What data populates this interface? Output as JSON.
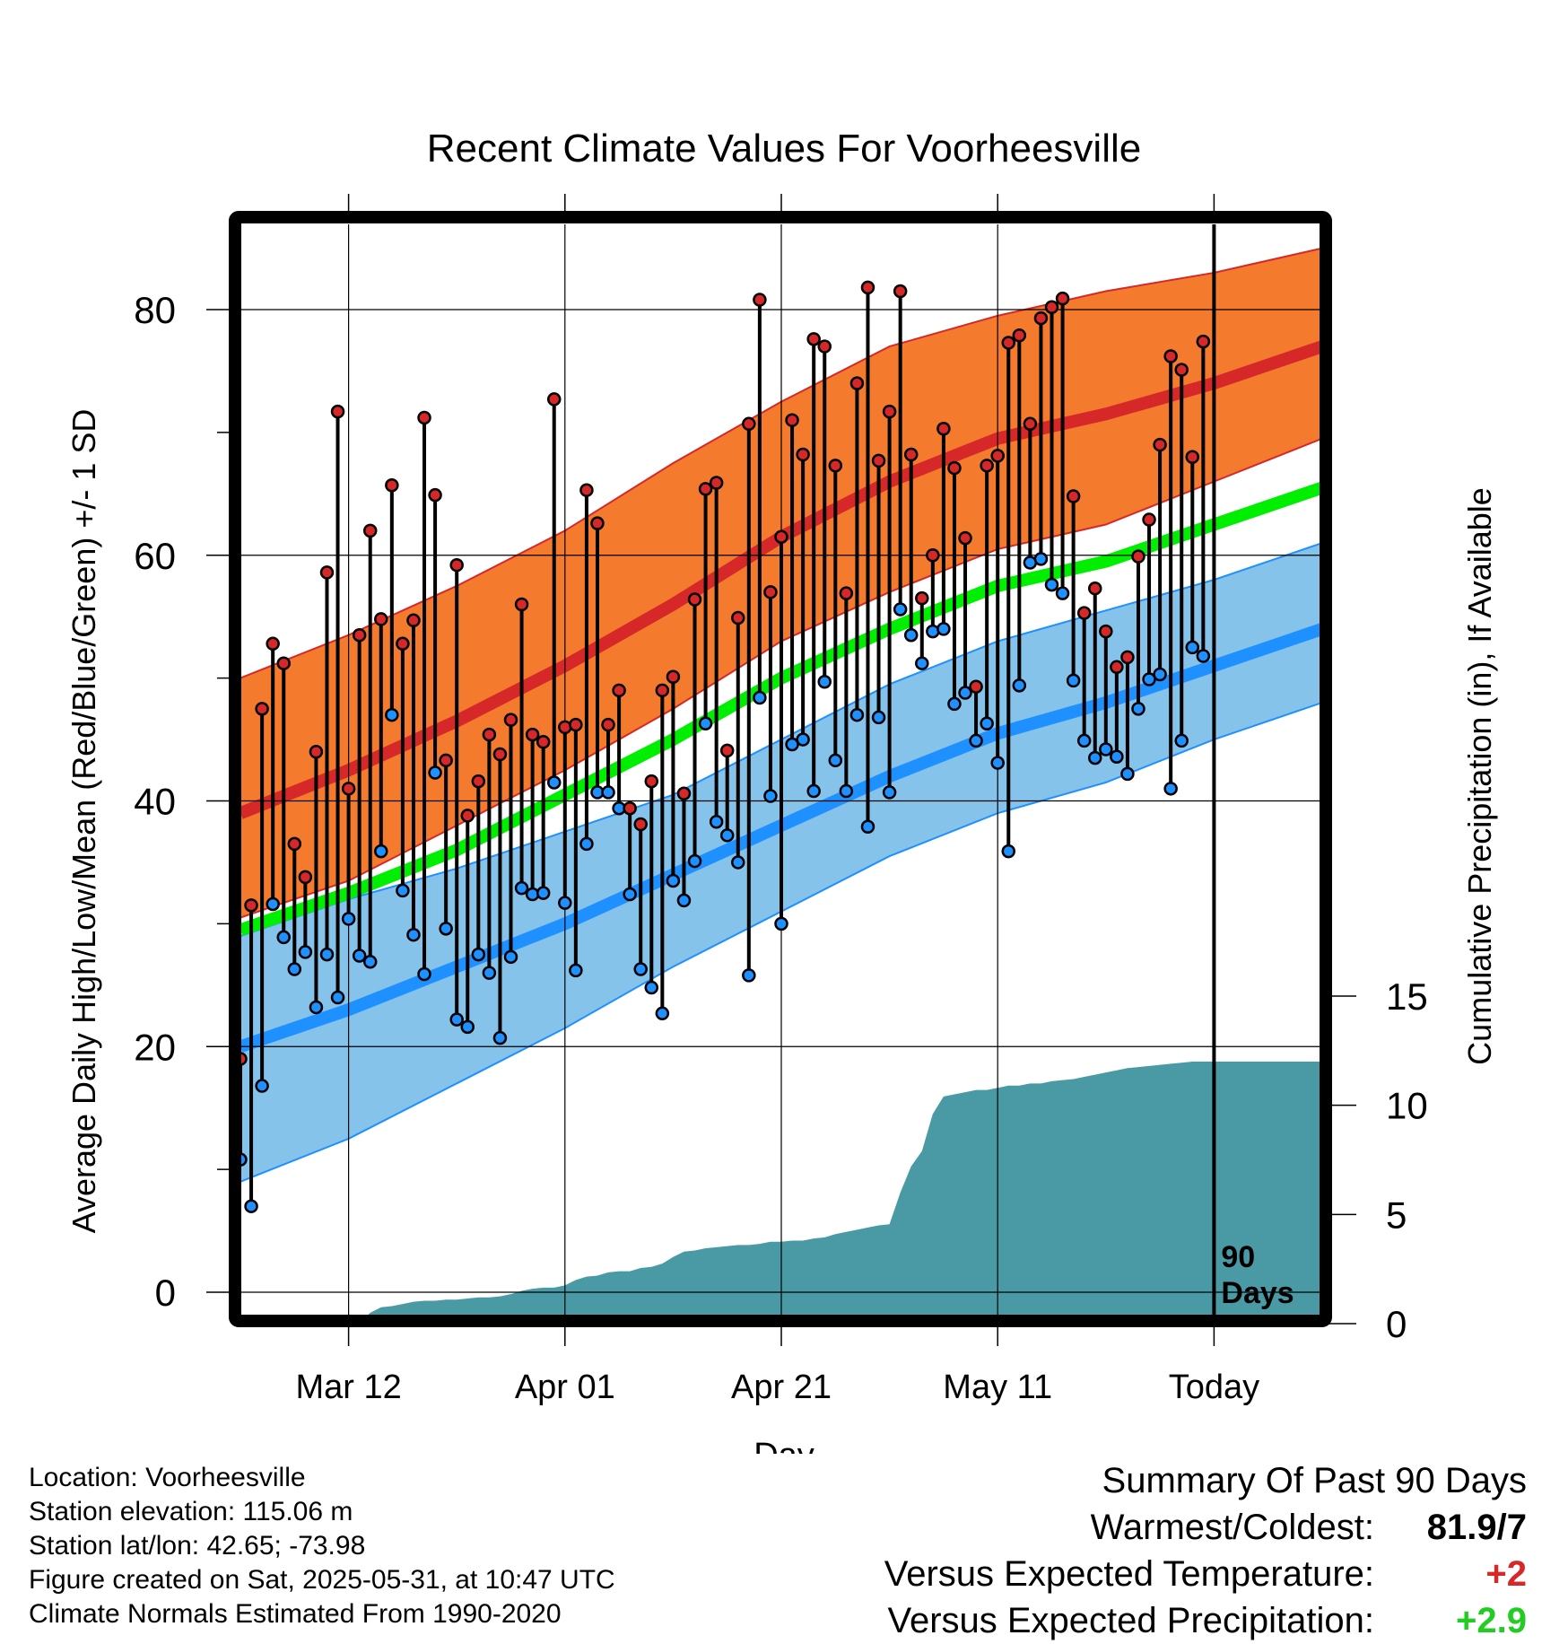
{
  "chart_data": {
    "type": "line",
    "title": "Recent Climate Values For Voorheesville",
    "xlabel": "Day",
    "ylabel": "Average Daily High/Low/Mean (Red/Blue/Green) +/- 1 SD",
    "y2label": "Cumulative Precipitation (in), If Available",
    "ylim": [
      -3,
      87
    ],
    "y_ticks": [
      0,
      20,
      40,
      60,
      80
    ],
    "y2lim": [
      0,
      15
    ],
    "y2_ticks": [
      0,
      5,
      10,
      15
    ],
    "x_ticks": [
      {
        "day": 11,
        "label": "Mar 12"
      },
      {
        "day": 31,
        "label": "Apr 01"
      },
      {
        "day": 51,
        "label": "Apr 21"
      },
      {
        "day": 71,
        "label": "May 11"
      },
      {
        "day": 91,
        "label": "Today"
      }
    ],
    "xlim": [
      1,
      101
    ],
    "today_day": 91,
    "today_label_line1": "90",
    "today_label_line2": "Days",
    "normals": {
      "days": [
        1,
        11,
        21,
        31,
        41,
        51,
        61,
        71,
        81,
        91,
        101
      ],
      "high_mean": [
        39,
        42.5,
        46.5,
        51,
        56,
        61.5,
        66,
        69.5,
        71.5,
        74,
        77
      ],
      "high_upper": [
        50,
        53.5,
        57.5,
        62,
        67.5,
        72.5,
        77,
        79.5,
        81.5,
        83,
        85
      ],
      "high_lower": [
        30.5,
        33.5,
        38,
        42.5,
        47.5,
        53,
        57,
        60.5,
        62.5,
        66,
        69.5
      ],
      "low_mean": [
        20,
        23,
        26.5,
        30,
        34,
        38,
        42,
        45.5,
        48,
        51,
        54
      ],
      "low_upper": [
        29,
        32,
        34.5,
        37.5,
        40.5,
        45,
        49.5,
        53,
        55.5,
        58,
        61
      ],
      "low_lower": [
        9,
        12.5,
        17,
        21.5,
        26.5,
        31,
        35.5,
        39,
        41.5,
        45,
        48
      ],
      "mean": [
        29.5,
        32.5,
        36,
        40.5,
        45,
        50,
        54,
        57.5,
        59.5,
        62.5,
        65.5
      ]
    },
    "series": [
      {
        "name": "Daily High",
        "values": [
          19,
          31.5,
          47.5,
          52.8,
          51.2,
          36.5,
          33.8,
          44,
          58.6,
          71.7,
          41,
          53.5,
          62,
          54.8,
          65.7,
          52.8,
          54.7,
          71.2,
          64.9,
          43.3,
          59.2,
          38.8,
          41.6,
          45.4,
          43.8,
          46.6,
          56,
          45.4,
          44.8,
          72.7,
          46,
          46.2,
          65.3,
          62.6,
          46.2,
          49,
          39.4,
          38.1,
          41.6,
          49,
          50.1,
          40.6,
          56.4,
          65.4,
          65.9,
          44.1,
          54.9,
          70.7,
          80.8,
          57,
          61.5,
          71,
          68.2,
          77.6,
          77,
          67.3,
          56.9,
          74,
          81.8,
          67.7,
          71.7,
          81.5,
          68.2,
          56.5,
          60,
          70.3,
          67.1,
          61.4,
          49.3,
          67.3,
          68.1,
          77.3,
          77.9,
          70.7,
          79.3,
          80.2,
          80.9,
          64.8,
          55.3,
          57.3,
          53.8,
          50.9,
          51.7,
          59.9,
          62.9,
          69,
          76.2,
          75.1,
          68,
          77.4
        ]
      },
      {
        "name": "Daily Low",
        "values": [
          10.8,
          7,
          16.8,
          31.6,
          28.9,
          26.3,
          27.7,
          23.2,
          27.5,
          24,
          30.4,
          27.4,
          26.9,
          35.9,
          47,
          32.7,
          29.1,
          25.9,
          42.3,
          29.6,
          22.2,
          21.6,
          27.5,
          26,
          20.7,
          27.3,
          32.9,
          32.4,
          32.5,
          41.5,
          31.7,
          26.2,
          36.5,
          40.7,
          40.7,
          39.4,
          32.4,
          26.3,
          24.8,
          22.7,
          33.5,
          31.9,
          35.1,
          46.3,
          38.3,
          37.2,
          35,
          25.8,
          48.4,
          40.4,
          30,
          44.6,
          45,
          40.8,
          49.7,
          43.3,
          40.8,
          47,
          37.9,
          46.8,
          40.7,
          55.6,
          53.5,
          51.2,
          53.8,
          54,
          47.9,
          48.8,
          44.9,
          46.3,
          43.1,
          35.9,
          49.4,
          59.4,
          59.7,
          57.6,
          56.9,
          49.8,
          44.9,
          43.5,
          44.2,
          43.6,
          42.2,
          47.5,
          49.9,
          50.3,
          41,
          44.9,
          52.5,
          51.8
        ]
      }
    ],
    "precip": {
      "days": [
        1,
        12,
        13,
        14,
        15,
        16,
        17,
        18,
        19,
        20,
        21,
        22,
        23,
        24,
        25,
        26,
        27,
        28,
        29,
        30,
        31,
        32,
        33,
        34,
        35,
        36,
        37,
        38,
        39,
        40,
        41,
        42,
        43,
        44,
        45,
        46,
        47,
        48,
        49,
        50,
        51,
        52,
        53,
        54,
        55,
        56,
        57,
        58,
        59,
        60,
        61,
        62,
        63,
        64,
        65,
        66,
        67,
        68,
        69,
        70,
        71,
        72,
        73,
        74,
        75,
        76,
        77,
        78,
        79,
        80,
        81,
        82,
        83,
        84,
        85,
        86,
        87,
        88,
        89,
        90,
        101
      ],
      "values": [
        0,
        0,
        0.5,
        0.75,
        0.8,
        0.9,
        1.0,
        1.05,
        1.05,
        1.1,
        1.1,
        1.15,
        1.2,
        1.2,
        1.25,
        1.35,
        1.5,
        1.6,
        1.65,
        1.65,
        1.75,
        2.0,
        2.15,
        2.2,
        2.35,
        2.4,
        2.4,
        2.55,
        2.6,
        2.75,
        3.05,
        3.3,
        3.35,
        3.45,
        3.5,
        3.55,
        3.6,
        3.6,
        3.65,
        3.75,
        3.75,
        3.8,
        3.8,
        3.9,
        3.95,
        4.1,
        4.2,
        4.3,
        4.4,
        4.5,
        4.55,
        6.0,
        7.2,
        7.9,
        9.6,
        10.4,
        10.5,
        10.6,
        10.7,
        10.7,
        10.8,
        10.9,
        10.9,
        11.0,
        11.0,
        11.1,
        11.15,
        11.2,
        11.3,
        11.4,
        11.5,
        11.6,
        11.7,
        11.75,
        11.8,
        11.85,
        11.9,
        11.95,
        12.0,
        12.0,
        12.0
      ]
    },
    "colors": {
      "high_band": "#f47a2e",
      "high_line": "#d62828",
      "low_band": "#85c3ea",
      "low_line": "#1e90ff",
      "mean_line": "#00ee00",
      "precip": "#4a9aa5",
      "high_dot": "#d62828",
      "low_dot": "#1e90ff"
    }
  },
  "footer": {
    "location": "Location: Voorheesville",
    "elevation": "Station elevation: 115.06 m",
    "latlon": "Station lat/lon: 42.65; -73.98",
    "created": "Figure created on Sat, 2025-05-31, at 10:47 UTC",
    "normals": "Climate Normals Estimated From 1990-2020"
  },
  "summary": {
    "title": "Summary Of Past 90 Days",
    "warmest_label": "Warmest/Coldest:",
    "warmest_value": "81.9/7",
    "temp_label": "Versus Expected Temperature:",
    "temp_value": "+2",
    "temp_color": "#d62828",
    "precip_label": "Versus Expected Precipitation:",
    "precip_value": "+2.9",
    "precip_color": "#22cc22"
  }
}
